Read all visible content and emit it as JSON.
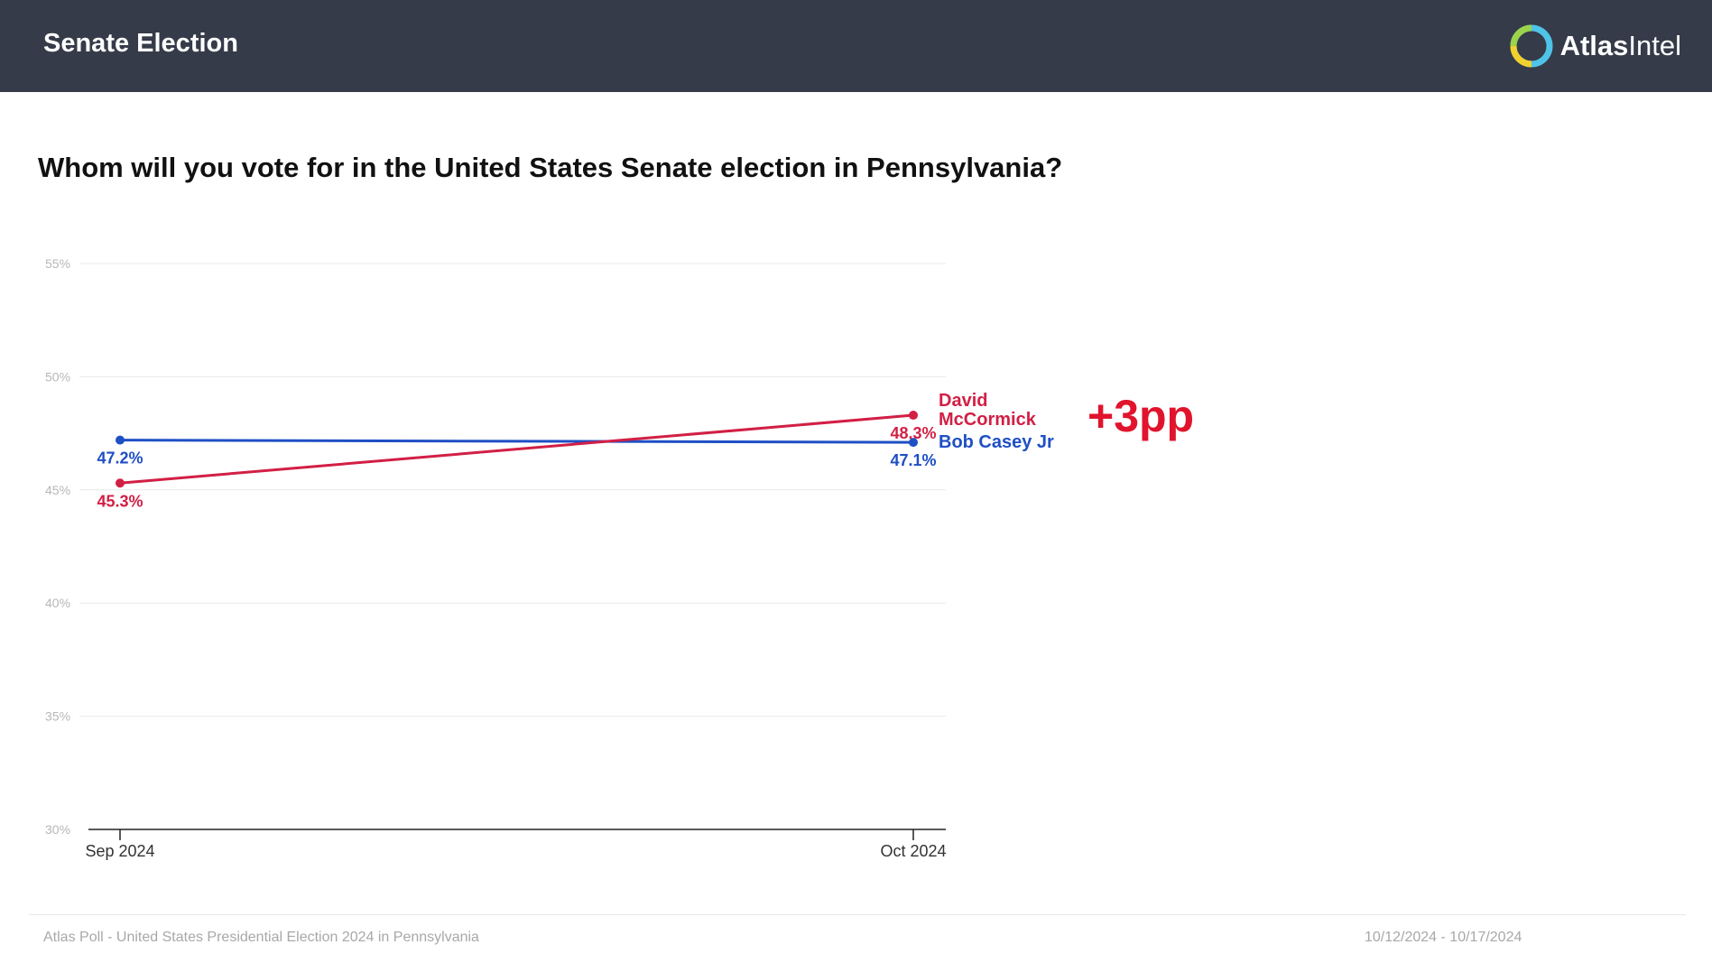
{
  "header": {
    "title": "Senate Election",
    "brand_bold": "Atlas",
    "brand_light": "Intel",
    "brand_color": "#353b48"
  },
  "question": "Whom will you vote for in the United States Senate election in Pennsylvania?",
  "chart_data": {
    "type": "line",
    "title": "Whom will you vote for in the United States Senate election in Pennsylvania?",
    "categories": [
      "Sep 2024",
      "Oct 2024"
    ],
    "ylim": [
      30,
      55
    ],
    "yticks": [
      30,
      35,
      40,
      45,
      50,
      55
    ],
    "ytick_labels": [
      "30%",
      "35%",
      "40%",
      "45%",
      "50%",
      "55%"
    ],
    "grid": true,
    "series": [
      {
        "name": "Bob Casey Jr",
        "name_lines": [
          "Bob Casey Jr"
        ],
        "color": "#1f4fc5",
        "values": [
          47.2,
          47.1
        ],
        "labels": [
          "47.2%",
          "47.1%"
        ]
      },
      {
        "name": "David McCormick",
        "name_lines": [
          "David",
          "McCormick"
        ],
        "color": "#d21f45",
        "values": [
          45.3,
          48.3
        ],
        "labels": [
          "45.3%",
          "48.3%"
        ]
      }
    ],
    "annotation": "+3pp"
  },
  "footer": {
    "source": "Atlas Poll - United States Presidential Election 2024 in Pennsylvania",
    "dates": "10/12/2024 - 10/17/2024"
  }
}
